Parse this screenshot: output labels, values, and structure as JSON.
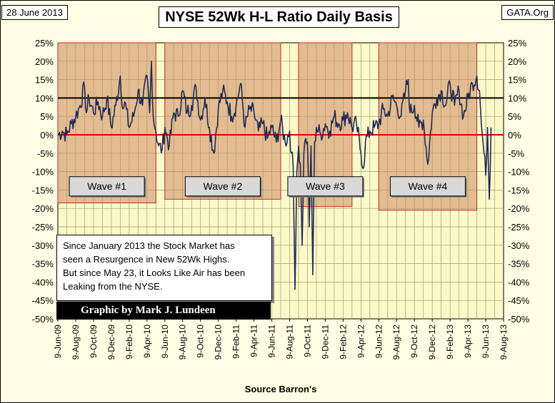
{
  "header": {
    "date": "28 June 2013",
    "site": "GATA.Org",
    "title": "NYSE 52Wk H-L Ratio Daily Basis"
  },
  "note": {
    "lines": [
      "Since January 2013 the Stock Market has",
      "seen a Resurgence in New 52Wk Highs.",
      "But since May 23, it Looks Like Air has been",
      "Leaking from the NYSE."
    ]
  },
  "credit": "Graphic by Mark J. Lundeen",
  "chart_data": {
    "type": "line",
    "title": "NYSE 52Wk H-L Ratio Daily Basis",
    "xlabel": "Source Barron's",
    "ylabel": "",
    "ylim": [
      -50,
      25
    ],
    "y_ticks": [
      "25%",
      "20%",
      "15%",
      "10%",
      "5%",
      "0%",
      "-5%",
      "-10%",
      "-15%",
      "-20%",
      "-25%",
      "-30%",
      "-35%",
      "-40%",
      "-45%",
      "-50%"
    ],
    "x_ticks": [
      "9-Jun-09",
      "9-Aug-09",
      "9-Oct-09",
      "9-Dec-09",
      "9-Feb-10",
      "9-Apr-10",
      "9-Jun-10",
      "9-Aug-10",
      "9-Oct-10",
      "9-Dec-10",
      "9-Feb-11",
      "9-Apr-11",
      "9-Jun-11",
      "9-Aug-11",
      "9-Oct-11",
      "9-Dec-11",
      "9-Feb-12",
      "9-Apr-12",
      "9-Jun-12",
      "9-Aug-12",
      "9-Oct-12",
      "9-Dec-12",
      "9-Feb-13",
      "9-Apr-13",
      "9-Jun-13",
      "9-Aug-13"
    ],
    "reference_lines": [
      {
        "value": 10,
        "color": "#000000"
      },
      {
        "value": 0,
        "color": "#e00000"
      }
    ],
    "waves": [
      {
        "label": "Wave #1",
        "start_month": 0,
        "end_month": 11,
        "top": 25,
        "bottom": -18.5
      },
      {
        "label": "Wave #2",
        "start_month": 12,
        "end_month": 25,
        "top": 25,
        "bottom": -17.5
      },
      {
        "label": "Wave #3",
        "start_month": 27,
        "end_month": 33,
        "top": 25,
        "bottom": -19.5
      },
      {
        "label": "Wave #4",
        "start_month": 36,
        "end_month": 47,
        "top": 25,
        "bottom": -20.5
      }
    ],
    "series": [
      {
        "name": "NYSE 52Wk H-L Ratio",
        "color": "#1f2a55",
        "keyframes": [
          [
            0.0,
            0
          ],
          [
            0.5,
            1
          ],
          [
            1.0,
            0
          ],
          [
            1.5,
            3
          ],
          [
            2.0,
            5
          ],
          [
            2.5,
            8
          ],
          [
            3.0,
            13
          ],
          [
            3.2,
            6
          ],
          [
            3.5,
            10
          ],
          [
            4.0,
            6
          ],
          [
            4.5,
            9
          ],
          [
            5.0,
            5
          ],
          [
            5.5,
            10
          ],
          [
            6.0,
            2
          ],
          [
            6.5,
            8
          ],
          [
            7.0,
            16
          ],
          [
            7.3,
            7
          ],
          [
            7.5,
            9
          ],
          [
            8.0,
            2
          ],
          [
            8.5,
            5
          ],
          [
            9.0,
            12
          ],
          [
            9.5,
            8
          ],
          [
            10.0,
            16
          ],
          [
            10.3,
            6
          ],
          [
            10.5,
            20
          ],
          [
            10.7,
            5
          ],
          [
            11.0,
            1
          ],
          [
            11.3,
            -3
          ],
          [
            11.7,
            -4
          ],
          [
            12.0,
            2
          ],
          [
            12.5,
            -3
          ],
          [
            13.0,
            6
          ],
          [
            13.5,
            5
          ],
          [
            14.0,
            12
          ],
          [
            14.5,
            6
          ],
          [
            15.0,
            8
          ],
          [
            15.5,
            13
          ],
          [
            16.0,
            4
          ],
          [
            16.5,
            10
          ],
          [
            17.0,
            2
          ],
          [
            17.5,
            -5
          ],
          [
            18.0,
            7
          ],
          [
            18.5,
            12
          ],
          [
            19.0,
            9
          ],
          [
            19.5,
            5
          ],
          [
            20.0,
            8
          ],
          [
            20.5,
            14
          ],
          [
            21.0,
            2
          ],
          [
            21.5,
            7
          ],
          [
            22.0,
            6
          ],
          [
            22.5,
            1
          ],
          [
            23.0,
            3
          ],
          [
            23.5,
            -1
          ],
          [
            24.0,
            2
          ],
          [
            24.5,
            -2
          ],
          [
            25.0,
            4
          ],
          [
            25.5,
            -2
          ],
          [
            26.0,
            1
          ],
          [
            26.2,
            -5
          ],
          [
            26.4,
            -9
          ],
          [
            26.6,
            -42
          ],
          [
            26.8,
            -10
          ],
          [
            27.0,
            -3
          ],
          [
            27.2,
            -8
          ],
          [
            27.4,
            -30
          ],
          [
            27.6,
            -5
          ],
          [
            27.8,
            -1
          ],
          [
            28.0,
            -2
          ],
          [
            28.2,
            -25
          ],
          [
            28.4,
            -3
          ],
          [
            28.6,
            -38
          ],
          [
            28.8,
            -2
          ],
          [
            29.0,
            2
          ],
          [
            29.5,
            0
          ],
          [
            30.0,
            3
          ],
          [
            30.5,
            1
          ],
          [
            31.0,
            5
          ],
          [
            31.5,
            3
          ],
          [
            32.0,
            4
          ],
          [
            32.5,
            6
          ],
          [
            33.0,
            2
          ],
          [
            33.5,
            3
          ],
          [
            34.0,
            -5
          ],
          [
            34.3,
            -9
          ],
          [
            34.5,
            -2
          ],
          [
            35.0,
            1
          ],
          [
            35.5,
            2
          ],
          [
            36.0,
            3
          ],
          [
            36.5,
            7
          ],
          [
            37.0,
            5
          ],
          [
            37.5,
            10
          ],
          [
            38.0,
            8
          ],
          [
            38.5,
            5
          ],
          [
            39.0,
            12
          ],
          [
            39.3,
            15
          ],
          [
            39.5,
            6
          ],
          [
            40.0,
            8
          ],
          [
            40.5,
            2
          ],
          [
            41.0,
            4
          ],
          [
            41.5,
            -8
          ],
          [
            42.0,
            6
          ],
          [
            42.5,
            10
          ],
          [
            43.0,
            12
          ],
          [
            43.5,
            8
          ],
          [
            44.0,
            14
          ],
          [
            44.5,
            8
          ],
          [
            45.0,
            12
          ],
          [
            45.5,
            5
          ],
          [
            46.0,
            10
          ],
          [
            46.5,
            14
          ],
          [
            47.0,
            16
          ],
          [
            47.3,
            12
          ],
          [
            47.5,
            3
          ],
          [
            47.8,
            -5
          ],
          [
            48.0,
            -11
          ],
          [
            48.2,
            2
          ],
          [
            48.4,
            -17.5
          ],
          [
            48.6,
            2
          ]
        ]
      }
    ]
  }
}
